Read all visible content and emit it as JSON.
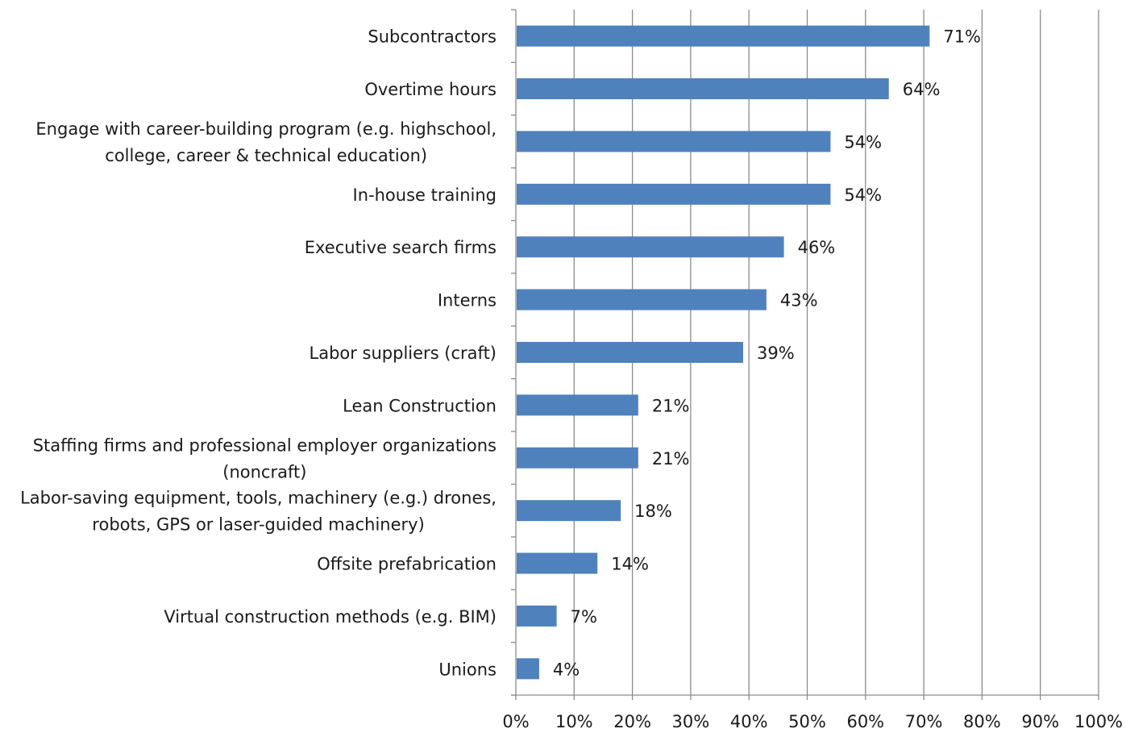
{
  "chart_data": {
    "type": "bar",
    "orientation": "horizontal",
    "categories": [
      [
        "Subcontractors"
      ],
      [
        "Overtime hours"
      ],
      [
        "Engage with career-building program (e.g. highschool,",
        "college, career & technical education)"
      ],
      [
        "In-house training"
      ],
      [
        "Executive search firms"
      ],
      [
        "Interns"
      ],
      [
        "Labor suppliers (craft)"
      ],
      [
        "Lean Construction"
      ],
      [
        "Staffing firms and professional employer organizations",
        "(noncraft)"
      ],
      [
        "Labor-saving equipment, tools, machinery (e.g.) drones,",
        "robots, GPS or laser-guided machinery)"
      ],
      [
        "Offsite prefabrication"
      ],
      [
        "Virtual construction methods (e.g. BIM)"
      ],
      [
        "Unions"
      ]
    ],
    "values": [
      71,
      64,
      54,
      54,
      46,
      43,
      39,
      21,
      21,
      18,
      14,
      7,
      4
    ],
    "data_labels": [
      "71%",
      "64%",
      "54%",
      "54%",
      "46%",
      "43%",
      "39%",
      "21%",
      "21%",
      "18%",
      "14%",
      "7%",
      "4%"
    ],
    "xlim": [
      0,
      100
    ],
    "x_ticks": [
      "0%",
      "10%",
      "20%",
      "30%",
      "40%",
      "50%",
      "60%",
      "70%",
      "80%",
      "90%",
      "100%"
    ],
    "grid": "vertical",
    "legend": "none",
    "colors": {
      "bar": "#4f81bd",
      "grid": "#8c8c8c",
      "axis": "#8c8c8c",
      "text": "#1a1a1a"
    }
  }
}
